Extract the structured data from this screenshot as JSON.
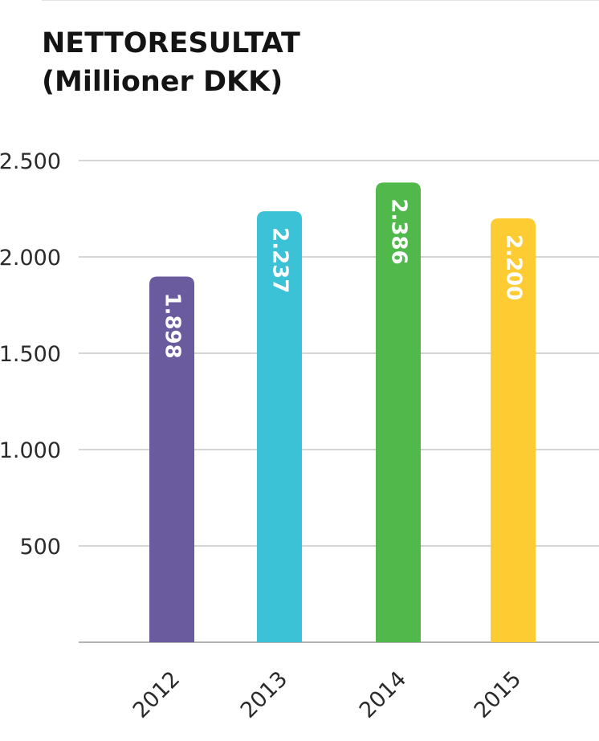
{
  "chart_data": {
    "type": "bar",
    "title": [
      "NETTORESULTAT",
      "(Millioner DKK)"
    ],
    "categories": [
      "2012",
      "2013",
      "2014",
      "2015"
    ],
    "values": [
      1898,
      2237,
      2386,
      2200
    ],
    "data_labels": [
      "1.898",
      "2.237",
      "2.386",
      "2.200"
    ],
    "bar_colors": [
      "#6a5a9e",
      "#3bc2d6",
      "#51b94b",
      "#fdcc32"
    ],
    "ylim": [
      0,
      2500
    ],
    "yticks": [
      500,
      1000,
      1500,
      2000,
      2500
    ],
    "ytick_labels": [
      "500",
      "1.000",
      "1.500",
      "2.000",
      "2.500"
    ],
    "grid": true,
    "xlabel": "",
    "ylabel": ""
  }
}
